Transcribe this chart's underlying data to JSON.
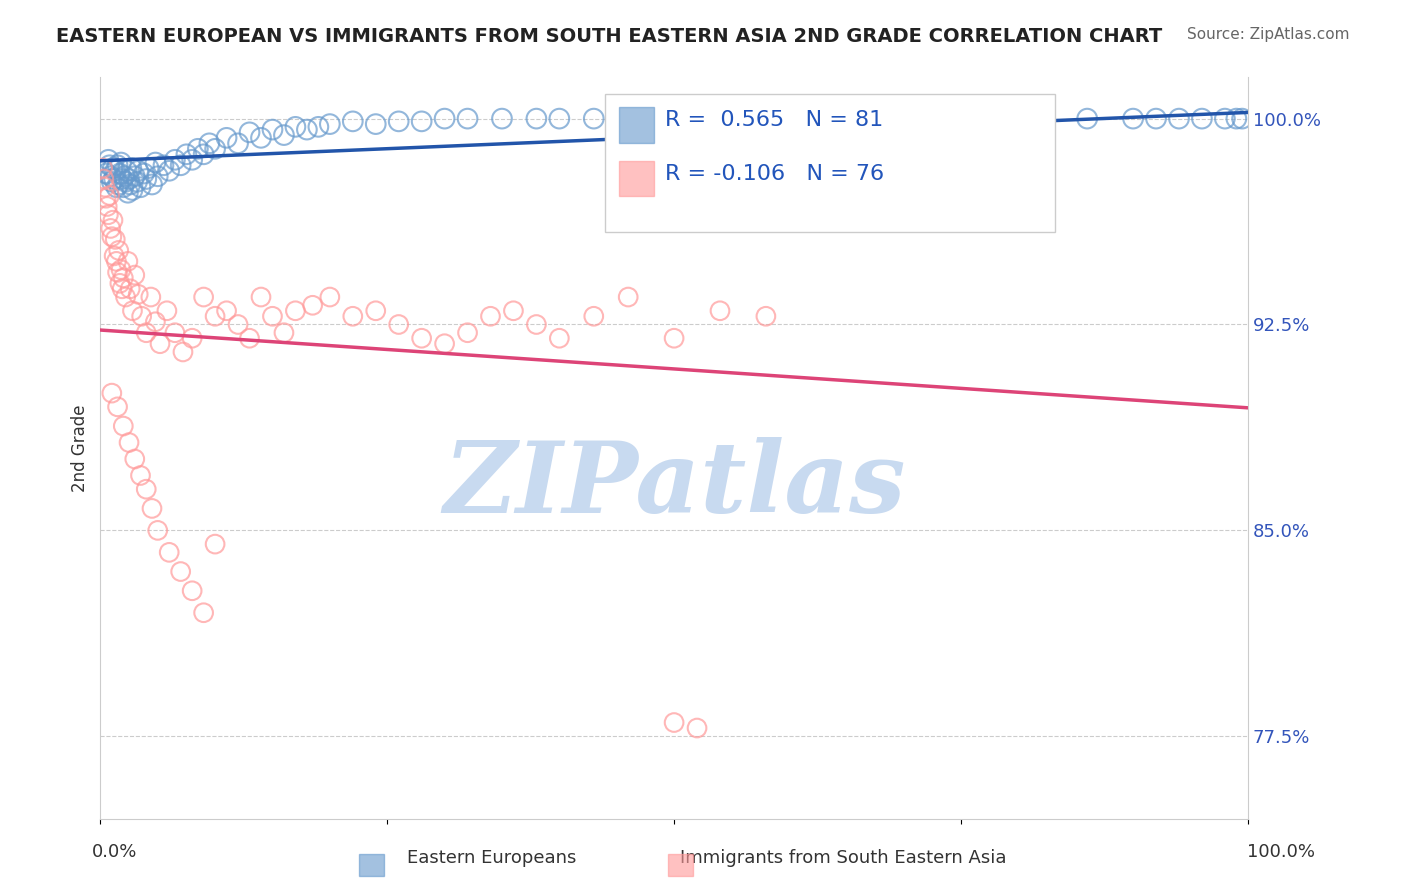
{
  "title": "EASTERN EUROPEAN VS IMMIGRANTS FROM SOUTH EASTERN ASIA 2ND GRADE CORRELATION CHART",
  "source": "Source: ZipAtlas.com",
  "ylabel": "2nd Grade",
  "xmin": 0.0,
  "xmax": 1.0,
  "ymin": 0.745,
  "ymax": 1.015,
  "yticks": [
    0.775,
    0.85,
    0.925,
    1.0
  ],
  "ytick_labels": [
    "77.5%",
    "85.0%",
    "92.5%",
    "100.0%"
  ],
  "gridline_color": "#cccccc",
  "blue_R": 0.565,
  "blue_N": 81,
  "pink_R": -0.106,
  "pink_N": 76,
  "blue_color": "#6699cc",
  "pink_color": "#ff9999",
  "blue_line_color": "#2255aa",
  "pink_line_color": "#dd4477",
  "watermark": "ZIPatlas",
  "watermark_color": "#c8daf0",
  "background_color": "#ffffff",
  "title_color": "#222222",
  "source_color": "#666666",
  "legend_R_color": "#2255bb",
  "blue_scatter_x": [
    0.005,
    0.007,
    0.008,
    0.009,
    0.01,
    0.011,
    0.012,
    0.013,
    0.014,
    0.015,
    0.016,
    0.017,
    0.018,
    0.019,
    0.02,
    0.021,
    0.022,
    0.023,
    0.024,
    0.025,
    0.026,
    0.027,
    0.028,
    0.03,
    0.032,
    0.033,
    0.035,
    0.038,
    0.04,
    0.042,
    0.045,
    0.048,
    0.05,
    0.055,
    0.06,
    0.065,
    0.07,
    0.075,
    0.08,
    0.085,
    0.09,
    0.095,
    0.1,
    0.11,
    0.12,
    0.13,
    0.14,
    0.15,
    0.16,
    0.17,
    0.18,
    0.19,
    0.2,
    0.22,
    0.24,
    0.26,
    0.28,
    0.3,
    0.32,
    0.35,
    0.38,
    0.4,
    0.43,
    0.46,
    0.5,
    0.54,
    0.58,
    0.62,
    0.66,
    0.7,
    0.74,
    0.78,
    0.82,
    0.86,
    0.9,
    0.92,
    0.94,
    0.96,
    0.98,
    0.99,
    0.995
  ],
  "blue_scatter_y": [
    0.98,
    0.985,
    0.983,
    0.979,
    0.977,
    0.982,
    0.978,
    0.981,
    0.975,
    0.983,
    0.976,
    0.98,
    0.984,
    0.978,
    0.975,
    0.979,
    0.977,
    0.981,
    0.973,
    0.978,
    0.976,
    0.982,
    0.974,
    0.979,
    0.977,
    0.981,
    0.975,
    0.98,
    0.978,
    0.982,
    0.976,
    0.984,
    0.979,
    0.983,
    0.981,
    0.985,
    0.983,
    0.987,
    0.985,
    0.989,
    0.987,
    0.991,
    0.989,
    0.993,
    0.991,
    0.995,
    0.993,
    0.996,
    0.994,
    0.997,
    0.996,
    0.997,
    0.998,
    0.999,
    0.998,
    0.999,
    0.999,
    1.0,
    1.0,
    1.0,
    1.0,
    1.0,
    1.0,
    1.0,
    1.0,
    1.0,
    1.0,
    1.0,
    1.0,
    1.0,
    1.0,
    1.0,
    1.0,
    1.0,
    1.0,
    1.0,
    1.0,
    1.0,
    1.0,
    1.0,
    1.0
  ],
  "pink_scatter_x": [
    0.002,
    0.003,
    0.004,
    0.005,
    0.006,
    0.007,
    0.008,
    0.009,
    0.01,
    0.011,
    0.012,
    0.013,
    0.014,
    0.015,
    0.016,
    0.017,
    0.018,
    0.019,
    0.02,
    0.022,
    0.024,
    0.026,
    0.028,
    0.03,
    0.033,
    0.036,
    0.04,
    0.044,
    0.048,
    0.052,
    0.058,
    0.065,
    0.072,
    0.08,
    0.09,
    0.1,
    0.11,
    0.12,
    0.13,
    0.14,
    0.15,
    0.16,
    0.17,
    0.185,
    0.2,
    0.22,
    0.24,
    0.26,
    0.28,
    0.3,
    0.32,
    0.34,
    0.36,
    0.38,
    0.4,
    0.43,
    0.46,
    0.5,
    0.54,
    0.58,
    0.01,
    0.015,
    0.02,
    0.025,
    0.03,
    0.035,
    0.04,
    0.045,
    0.05,
    0.06,
    0.07,
    0.08,
    0.09,
    0.1,
    0.5,
    0.52
  ],
  "pink_scatter_y": [
    0.982,
    0.978,
    0.975,
    0.971,
    0.968,
    0.965,
    0.972,
    0.96,
    0.957,
    0.963,
    0.95,
    0.956,
    0.948,
    0.944,
    0.952,
    0.94,
    0.945,
    0.938,
    0.942,
    0.935,
    0.948,
    0.938,
    0.93,
    0.943,
    0.936,
    0.928,
    0.922,
    0.935,
    0.926,
    0.918,
    0.93,
    0.922,
    0.915,
    0.92,
    0.935,
    0.928,
    0.93,
    0.925,
    0.92,
    0.935,
    0.928,
    0.922,
    0.93,
    0.932,
    0.935,
    0.928,
    0.93,
    0.925,
    0.92,
    0.918,
    0.922,
    0.928,
    0.93,
    0.925,
    0.92,
    0.928,
    0.935,
    0.92,
    0.93,
    0.928,
    0.9,
    0.895,
    0.888,
    0.882,
    0.876,
    0.87,
    0.865,
    0.858,
    0.85,
    0.842,
    0.835,
    0.828,
    0.82,
    0.845,
    0.78,
    0.778
  ]
}
